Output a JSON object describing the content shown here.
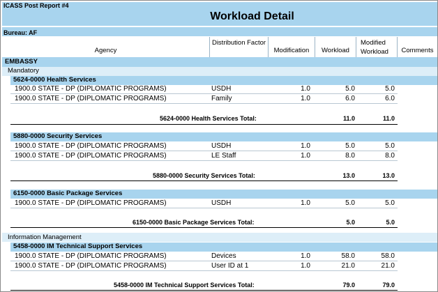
{
  "report_label": "ICASS Post Report #4",
  "title": "Workload Detail",
  "bureau": "Bureau: AF",
  "columns": {
    "agency": "Agency",
    "factor": "Distribution Factor",
    "modification": "Modification",
    "workload": "Workload",
    "modified_workload": "Modified Workload",
    "comments": "Comments"
  },
  "group": "EMBASSY",
  "categories": [
    {
      "name": "Mandatory",
      "services": [
        {
          "name": "5624-0000 Health Services",
          "rows": [
            {
              "agency": "1900.0 STATE - DP (DIPLOMATIC PROGRAMS)",
              "factor": "USDH",
              "modification": "1.0",
              "workload": "5.0",
              "modified": "5.0"
            },
            {
              "agency": "1900.0 STATE - DP (DIPLOMATIC PROGRAMS)",
              "factor": "Family",
              "modification": "1.0",
              "workload": "6.0",
              "modified": "6.0"
            }
          ],
          "total_label": "5624-0000 Health Services Total:",
          "total_workload": "11.0",
          "total_modified": "11.0"
        },
        {
          "name": "5880-0000 Security Services",
          "rows": [
            {
              "agency": "1900.0 STATE - DP (DIPLOMATIC PROGRAMS)",
              "factor": "USDH",
              "modification": "1.0",
              "workload": "5.0",
              "modified": "5.0"
            },
            {
              "agency": "1900.0 STATE - DP (DIPLOMATIC PROGRAMS)",
              "factor": "LE Staff",
              "modification": "1.0",
              "workload": "8.0",
              "modified": "8.0"
            }
          ],
          "total_label": "5880-0000 Security Services Total:",
          "total_workload": "13.0",
          "total_modified": "13.0"
        },
        {
          "name": "6150-0000 Basic Package Services",
          "rows": [
            {
              "agency": "1900.0 STATE - DP (DIPLOMATIC PROGRAMS)",
              "factor": "USDH",
              "modification": "1.0",
              "workload": "5.0",
              "modified": "5.0"
            }
          ],
          "total_label": "6150-0000 Basic Package Services Total:",
          "total_workload": "5.0",
          "total_modified": "5.0"
        }
      ]
    },
    {
      "name": "Information Management",
      "services": [
        {
          "name": "5458-0000 IM Technical Support Services",
          "rows": [
            {
              "agency": "1900.0 STATE - DP (DIPLOMATIC PROGRAMS)",
              "factor": "Devices",
              "modification": "1.0",
              "workload": "58.0",
              "modified": "58.0"
            },
            {
              "agency": "1900.0 STATE - DP (DIPLOMATIC PROGRAMS)",
              "factor": "User ID at 1",
              "modification": "1.0",
              "workload": "21.0",
              "modified": "21.0"
            }
          ],
          "total_label": "5458-0000 IM Technical Support Services Total:",
          "total_workload": "79.0",
          "total_modified": "79.0"
        }
      ]
    }
  ]
}
